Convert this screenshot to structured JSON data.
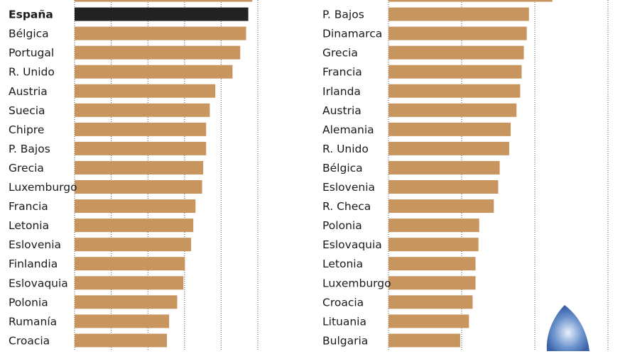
{
  "chart_data": [
    {
      "type": "bar",
      "orientation": "horizontal",
      "categories": [
        null,
        "España",
        "Bélgica",
        "Portugal",
        "R. Unido",
        "Austria",
        "Suecia",
        "Chipre",
        "P. Bajos",
        "Grecia",
        "Luxemburgo",
        "Francia",
        "Letonia",
        "Eslovenia",
        "Finlandia",
        "Eslovaquia",
        "Polonia",
        "Rumanía",
        "Croacia"
      ],
      "values": [
        4.85,
        4.74,
        4.68,
        4.52,
        4.31,
        3.84,
        3.69,
        3.59,
        3.59,
        3.51,
        3.48,
        3.3,
        3.24,
        3.18,
        3.01,
        2.97,
        2.8,
        2.58,
        2.52
      ],
      "color": "#c8955f",
      "highlight": "España",
      "highlight_color": "#222222",
      "xlim": [
        0,
        5
      ],
      "xgrid": [
        0,
        1,
        2,
        3,
        4,
        5
      ],
      "grid": true
    },
    {
      "type": "bar",
      "orientation": "horizontal",
      "categories": [
        null,
        "P. Bajos",
        "Dinamarca",
        "Grecia",
        "Francia",
        "Irlanda",
        "Austria",
        "Alemania",
        "R. Unido",
        "Bélgica",
        "Eslovenia",
        "R. Checa",
        "Polonia",
        "Eslovaquia",
        "Letonia",
        "Luxemburgo",
        "Croacia",
        "Lituania",
        "Bulgaria"
      ],
      "values": [
        2.24,
        1.92,
        1.89,
        1.85,
        1.82,
        1.8,
        1.75,
        1.67,
        1.65,
        1.52,
        1.5,
        1.44,
        1.24,
        1.23,
        1.19,
        1.19,
        1.15,
        1.1,
        0.98
      ],
      "color": "#c8955f",
      "xlim": [
        0,
        3
      ],
      "xgrid": [
        0,
        1,
        2,
        3
      ],
      "grid": true
    }
  ]
}
